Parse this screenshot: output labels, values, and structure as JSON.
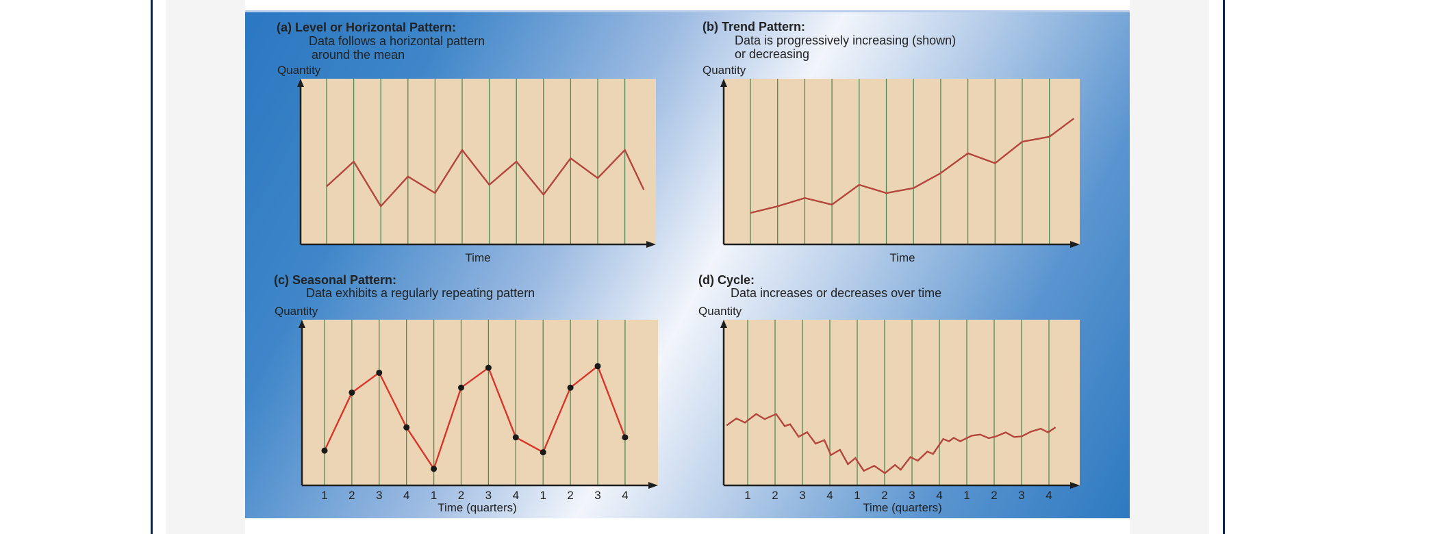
{
  "colors": {
    "plot_bg": "#ecd5b5",
    "grid_line": "#4f8a55",
    "series_line": "#b4453d",
    "seasonal_line": "#d8352a",
    "marker": "#1a1a1a",
    "axis": "#1e1e1e"
  },
  "chart_data": [
    {
      "type": "line",
      "title": "(a) Level or Horizontal Pattern:",
      "subtitle": [
        "Data follows a horizontal pattern",
        "around the mean"
      ],
      "ylabel": "Quantity",
      "xlabel": "Time",
      "grid": true,
      "x": [
        1,
        2,
        3,
        4,
        5,
        6,
        7,
        8,
        9,
        10,
        11,
        12,
        12.7
      ],
      "y": [
        35,
        50,
        23,
        41,
        31,
        57,
        36,
        50,
        30,
        52,
        40,
        57,
        33
      ],
      "markers": false
    },
    {
      "type": "line",
      "title": "(b) Trend Pattern:",
      "subtitle": [
        "Data is progressively increasing (shown)",
        "or decreasing"
      ],
      "ylabel": "Quantity",
      "xlabel": "Time",
      "grid": true,
      "x": [
        1,
        2,
        3,
        4,
        5,
        6,
        7,
        8,
        9,
        10,
        11,
        12,
        12.9
      ],
      "y": [
        19,
        23,
        28,
        24,
        36,
        31,
        34,
        43,
        55,
        49,
        62,
        65,
        76
      ],
      "markers": false
    },
    {
      "type": "line",
      "title": "(c) Seasonal Pattern:",
      "subtitle": [
        "Data exhibits a regularly repeating pattern"
      ],
      "ylabel": "Quantity",
      "xlabel": "Time (quarters)",
      "grid": true,
      "xticks": [
        "1",
        "2",
        "3",
        "4",
        "1",
        "2",
        "3",
        "4",
        "1",
        "2",
        "3",
        "4"
      ],
      "x": [
        1,
        2,
        3,
        4,
        5,
        6,
        7,
        8,
        9,
        10,
        11,
        12
      ],
      "y": [
        21,
        56,
        68,
        35,
        10,
        59,
        71,
        29,
        20,
        59,
        72,
        29
      ],
      "markers": true
    },
    {
      "type": "line",
      "title": "(d) Cycle:",
      "subtitle": [
        "Data increases or decreases over time"
      ],
      "ylabel": "Quantity",
      "xlabel": "Time (quarters)",
      "grid": true,
      "xticks": [
        "1",
        "2",
        "3",
        "4",
        "1",
        "2",
        "3",
        "4",
        "1",
        "2",
        "3",
        "4"
      ],
      "x": [
        0.23,
        0.59,
        0.9,
        1.31,
        1.62,
        2.04,
        2.35,
        2.55,
        2.86,
        3.17,
        3.48,
        3.8,
        4.04,
        4.37,
        4.66,
        4.93,
        5.24,
        5.62,
        6.01,
        6.38,
        6.59,
        6.94,
        7.21,
        7.56,
        7.77,
        8.14,
        8.35,
        8.52,
        8.76,
        9.18,
        9.49,
        9.8,
        10.07,
        10.42,
        10.73,
        11.0,
        11.35,
        11.7,
        11.97,
        12.24
      ],
      "y": [
        36.2,
        40.4,
        37.9,
        43.1,
        40.0,
        43.1,
        35.8,
        36.9,
        29.3,
        32.1,
        25.2,
        27.3,
        18.3,
        21.5,
        12.8,
        16.5,
        8.8,
        11.8,
        7.4,
        12.3,
        9.5,
        17.1,
        14.9,
        20.4,
        19.0,
        28.0,
        26.6,
        28.7,
        26.6,
        30.0,
        30.7,
        28.5,
        29.6,
        32.0,
        29.2,
        29.6,
        32.5,
        34.2,
        32.0,
        35.1
      ],
      "markers": false
    }
  ]
}
